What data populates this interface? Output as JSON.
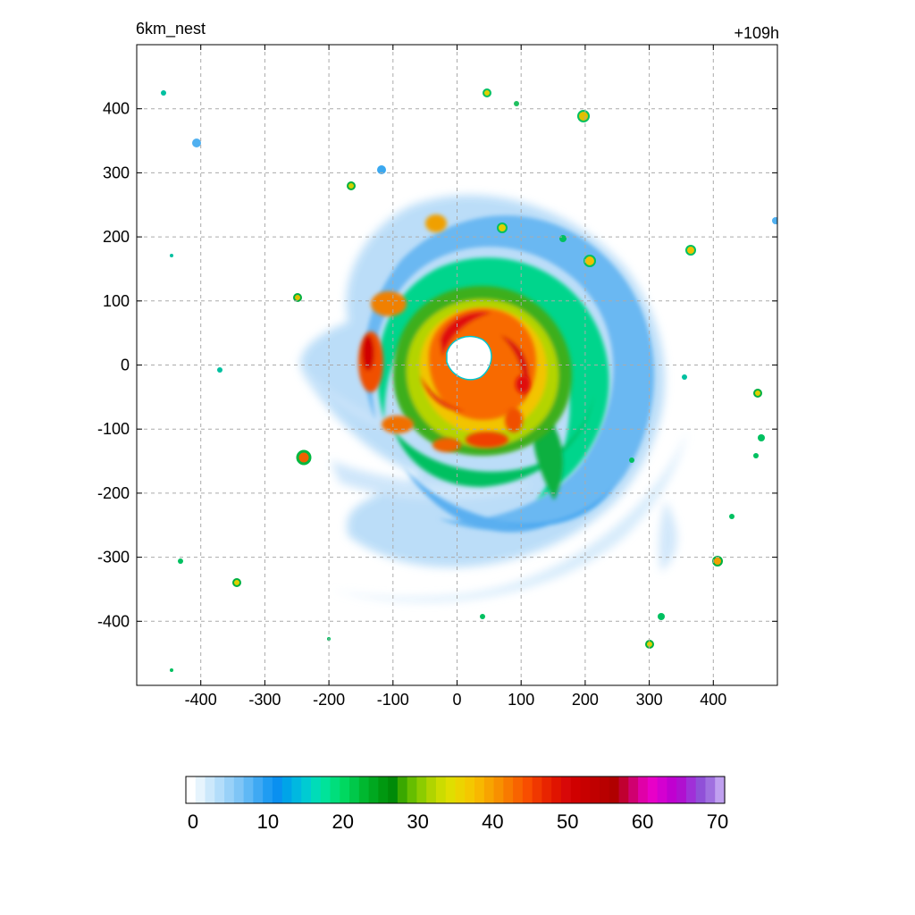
{
  "header": {
    "left_label": "6km_nest",
    "right_label": "+109h"
  },
  "chart_data": {
    "type": "heatmap",
    "field_description_visible": false,
    "x_ticks": [
      -400,
      -300,
      -200,
      -100,
      0,
      100,
      200,
      300,
      400
    ],
    "y_ticks": [
      400,
      300,
      200,
      100,
      0,
      -100,
      -200,
      -300,
      -400
    ],
    "xlim": [
      -500,
      500
    ],
    "ylim": [
      -500,
      500
    ],
    "grid": true,
    "colorbar": {
      "ticks": [
        0,
        10,
        20,
        30,
        40,
        50,
        60,
        70
      ],
      "range": [
        0,
        70
      ],
      "colors": [
        "#ffffff",
        "#e6f4fd",
        "#cce8fb",
        "#b3ddfa",
        "#99d1f8",
        "#7fc5f6",
        "#5fb8f5",
        "#3fa9f3",
        "#1f9cf2",
        "#0a90f0",
        "#00a4e8",
        "#00b8e0",
        "#00cbd2",
        "#00dcb8",
        "#00e39a",
        "#00de7c",
        "#00d860",
        "#00c84a",
        "#00b830",
        "#00a820",
        "#009810",
        "#008a08",
        "#3aa800",
        "#66be00",
        "#8ccc00",
        "#b0d400",
        "#ccdc00",
        "#e0de00",
        "#ecd400",
        "#f4c800",
        "#f8b800",
        "#f8a400",
        "#f89000",
        "#f87a00",
        "#f86400",
        "#f84e00",
        "#f03800",
        "#e82400",
        "#e01400",
        "#d80808",
        "#d00000",
        "#c80000",
        "#c00000",
        "#b80000",
        "#b00000",
        "#c00030",
        "#d00070",
        "#e000a8",
        "#e800c8",
        "#d400d0",
        "#c000d0",
        "#b010d0",
        "#a030d8",
        "#9050d8",
        "#a070e0",
        "#c0a0f0"
      ]
    }
  }
}
